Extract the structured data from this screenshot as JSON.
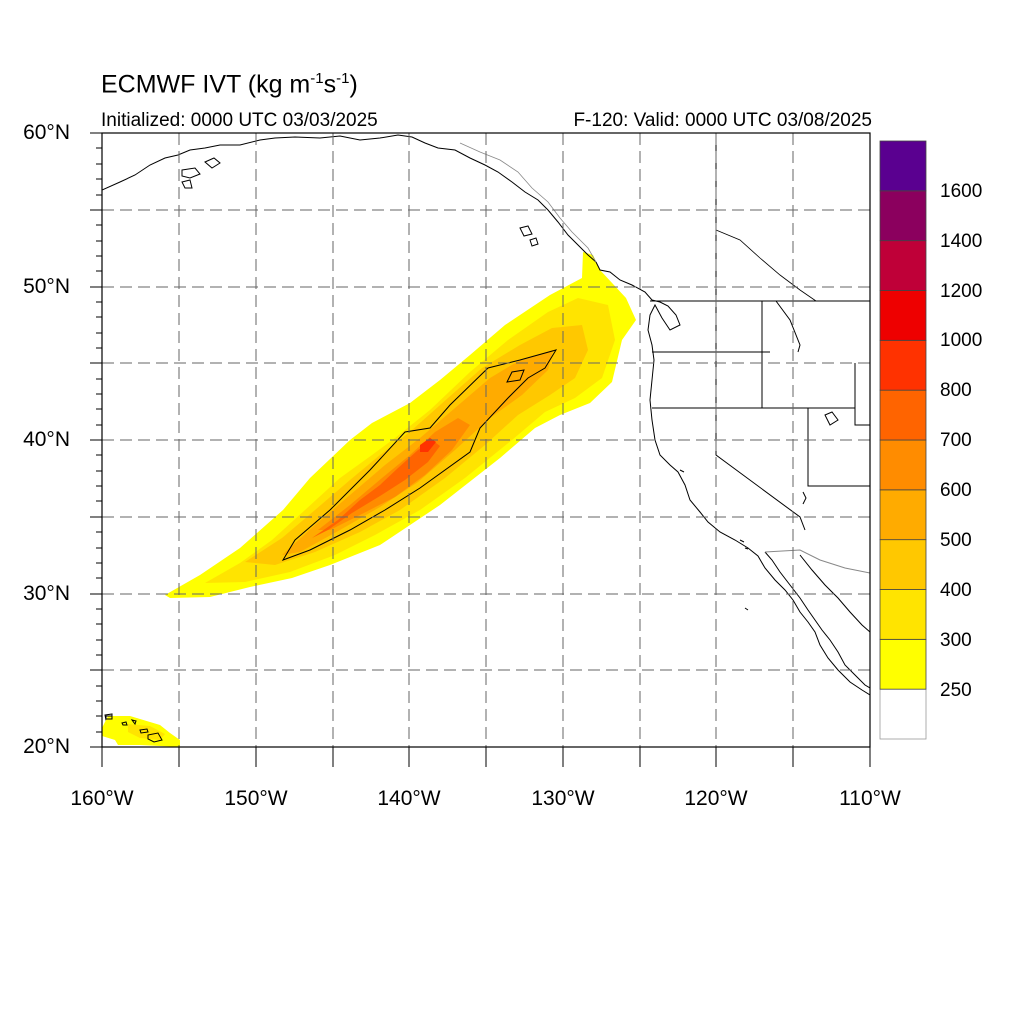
{
  "title_main": "ECMWF IVT (kg m",
  "title_sup1": "-1",
  "title_mid": "s",
  "title_sup2": "-1",
  "title_end": ")",
  "subtitle_left": "Initialized: 0000 UTC 03/03/2025",
  "subtitle_right": "F-120: Valid: 0000 UTC 03/08/2025",
  "lat_labels": [
    "60°N",
    "50°N",
    "40°N",
    "30°N",
    "20°N"
  ],
  "lon_labels": [
    "160°W",
    "150°W",
    "140°W",
    "130°W",
    "120°W",
    "110°W"
  ],
  "map_extent": {
    "lon": [
      -160,
      -110
    ],
    "lat": [
      20,
      60
    ]
  },
  "colorbar": {
    "labels": [
      "1600",
      "1400",
      "1200",
      "1000",
      "800",
      "700",
      "600",
      "500",
      "400",
      "300",
      "250"
    ],
    "levels": [
      250,
      300,
      400,
      500,
      600,
      700,
      800,
      1000,
      1200,
      1400,
      1600
    ],
    "colors": [
      "#ffffff",
      "#ffff00",
      "#ffe400",
      "#ffc800",
      "#ffab00",
      "#ff8c00",
      "#ff6400",
      "#ff3200",
      "#ee0000",
      "#bf0038",
      "#8b005e",
      "#5a0090"
    ]
  },
  "river_axis": {
    "start": {
      "lon": -156.5,
      "lat": 30
    },
    "end": {
      "lon": -127.5,
      "lat": 50
    },
    "peak": {
      "lon": -140,
      "lat": 39,
      "ivt": 800
    }
  }
}
